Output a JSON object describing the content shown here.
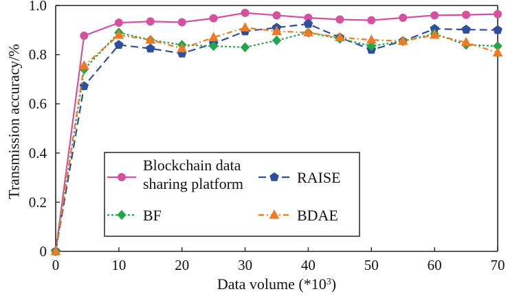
{
  "chart_data": {
    "type": "line",
    "xlabel_base": "Data volume (*10",
    "xlabel_sup": "3",
    "xlabel_close": ")",
    "ylabel": "Transmission accuracy/%",
    "xlim": [
      0,
      70
    ],
    "ylim": [
      0,
      1.0
    ],
    "xticks": [
      0,
      10,
      20,
      30,
      40,
      50,
      60,
      70
    ],
    "yticks": [
      {
        "value": 0,
        "label": "0"
      },
      {
        "value": 0.2,
        "label": "0.2"
      },
      {
        "value": 0.4,
        "label": "0.4"
      },
      {
        "value": 0.6,
        "label": "0.6"
      },
      {
        "value": 0.8,
        "label": "0.8"
      },
      {
        "value": 1.0,
        "label": "1.0"
      }
    ],
    "grid": false,
    "legend_position": "lower-center",
    "series": [
      {
        "name_lines": [
          "Blockchain data",
          "sharing platform"
        ],
        "color": "#d5519e",
        "marker": "circle",
        "dash": "solid",
        "x": [
          0,
          4.5,
          10,
          15,
          20,
          25,
          30,
          35,
          40,
          45,
          50,
          55,
          60,
          65,
          70
        ],
        "y": [
          0,
          0.877,
          0.93,
          0.935,
          0.932,
          0.948,
          0.97,
          0.96,
          0.95,
          0.943,
          0.94,
          0.95,
          0.96,
          0.962,
          0.965
        ]
      },
      {
        "name_lines": [
          "RAISE"
        ],
        "color": "#2f4f9e",
        "marker": "pentagon",
        "dash": "longdash",
        "x": [
          0,
          4.5,
          10,
          15,
          20,
          25,
          30,
          35,
          40,
          45,
          50,
          55,
          60,
          65,
          70
        ],
        "y": [
          0,
          0.672,
          0.84,
          0.825,
          0.805,
          0.845,
          0.895,
          0.91,
          0.925,
          0.87,
          0.82,
          0.855,
          0.905,
          0.902,
          0.9
        ]
      },
      {
        "name_lines": [
          "BF"
        ],
        "color": "#22a64a",
        "marker": "diamond",
        "dash": "dotted",
        "x": [
          0,
          4.5,
          10,
          15,
          20,
          25,
          30,
          35,
          40,
          45,
          50,
          55,
          60,
          65,
          70
        ],
        "y": [
          0,
          0.74,
          0.89,
          0.86,
          0.84,
          0.835,
          0.83,
          0.858,
          0.89,
          0.865,
          0.835,
          0.855,
          0.885,
          0.84,
          0.835
        ]
      },
      {
        "name_lines": [
          "BDAE"
        ],
        "color": "#f07a24",
        "marker": "triangle",
        "dash": "dashdot",
        "x": [
          0,
          4.5,
          10,
          15,
          20,
          25,
          30,
          35,
          40,
          45,
          50,
          55,
          60,
          65,
          70
        ],
        "y": [
          0,
          0.755,
          0.88,
          0.86,
          0.825,
          0.87,
          0.91,
          0.895,
          0.89,
          0.87,
          0.86,
          0.855,
          0.88,
          0.85,
          0.808
        ]
      }
    ]
  }
}
